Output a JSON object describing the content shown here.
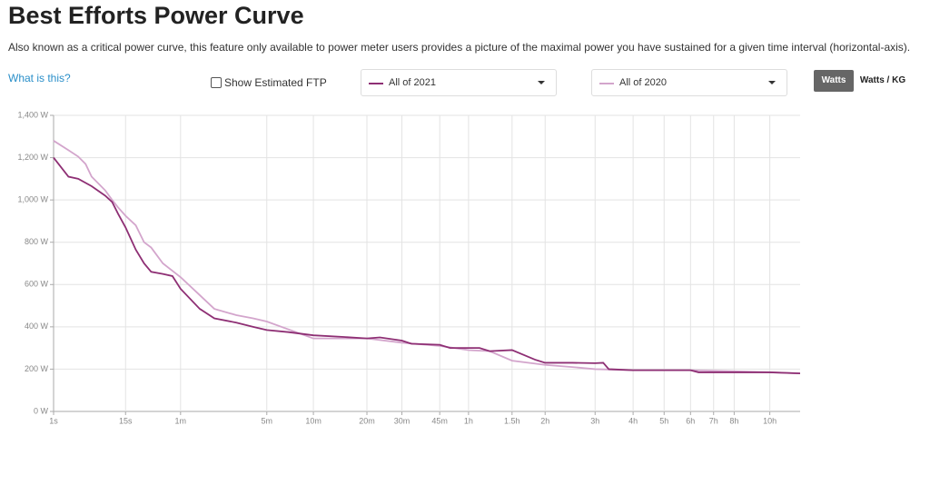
{
  "header": {
    "title": "Best Efforts Power Curve",
    "description": "Also known as a critical power curve, this feature only available to power meter users provides a picture of the maximal power you have sustained for a given time interval (horizontal-axis).",
    "help_link": "What is this?"
  },
  "controls": {
    "checkbox": "Show Estimated FTP",
    "units": [
      "Watts",
      "Watts / KG"
    ]
  },
  "chart_data": {
    "type": "line",
    "xscale": "power",
    "grid": true,
    "xlim": [
      1,
      43200
    ],
    "ylim": [
      0,
      1400
    ],
    "xticks": [
      {
        "value": 1,
        "label": "1s"
      },
      {
        "value": 15,
        "label": "15s"
      },
      {
        "value": 60,
        "label": "1m"
      },
      {
        "value": 300,
        "label": "5m"
      },
      {
        "value": 600,
        "label": "10m"
      },
      {
        "value": 1200,
        "label": "20m"
      },
      {
        "value": 1800,
        "label": "30m"
      },
      {
        "value": 2700,
        "label": "45m"
      },
      {
        "value": 3600,
        "label": "1h"
      },
      {
        "value": 5400,
        "label": "1.5h"
      },
      {
        "value": 7200,
        "label": "2h"
      },
      {
        "value": 10800,
        "label": "3h"
      },
      {
        "value": 14400,
        "label": "4h"
      },
      {
        "value": 18000,
        "label": "5h"
      },
      {
        "value": 21600,
        "label": "6h"
      },
      {
        "value": 25200,
        "label": "7h"
      },
      {
        "value": 28800,
        "label": "8h"
      },
      {
        "value": 36000,
        "label": "10h"
      }
    ],
    "yticks": [
      {
        "value": 0,
        "label": "0 W"
      },
      {
        "value": 200,
        "label": "200 W"
      },
      {
        "value": 400,
        "label": "400 W"
      },
      {
        "value": 600,
        "label": "600 W"
      },
      {
        "value": 800,
        "label": "800 W"
      },
      {
        "value": 1000,
        "label": "1,000 W"
      },
      {
        "value": 1200,
        "label": "1,200 W"
      },
      {
        "value": 1400,
        "label": "1,400 W"
      }
    ],
    "series": [
      {
        "name": "All of 2021",
        "color": "#8e2f74",
        "x": [
          1,
          2,
          3,
          5,
          8,
          10,
          12,
          15,
          20,
          25,
          30,
          40,
          50,
          60,
          90,
          120,
          180,
          240,
          300,
          420,
          600,
          900,
          1200,
          1400,
          1800,
          2000,
          2700,
          3000,
          3600,
          4000,
          4400,
          5400,
          6600,
          7200,
          9000,
          10800,
          11500,
          12000,
          14400,
          21600,
          22800,
          28800,
          36000,
          43200
        ],
        "values": [
          1200,
          1110,
          1100,
          1065,
          1020,
          990,
          935,
          870,
          765,
          700,
          660,
          650,
          640,
          580,
          485,
          440,
          420,
          400,
          385,
          375,
          360,
          352,
          345,
          350,
          335,
          320,
          315,
          300,
          300,
          300,
          285,
          290,
          245,
          230,
          230,
          228,
          230,
          200,
          195,
          195,
          185,
          185,
          185,
          180
        ]
      },
      {
        "name": "All of 2020",
        "color": "#d3a5cc",
        "x": [
          1,
          2,
          3,
          4,
          5,
          8,
          10,
          12,
          15,
          20,
          25,
          30,
          40,
          50,
          60,
          90,
          120,
          180,
          240,
          300,
          600,
          900,
          1200,
          1800,
          2700,
          3600,
          4400,
          5400,
          7200,
          9000,
          10800,
          14400,
          21600,
          28800,
          36000,
          43200
        ],
        "values": [
          1280,
          1235,
          1205,
          1170,
          1110,
          1045,
          1000,
          965,
          925,
          880,
          800,
          775,
          700,
          665,
          635,
          550,
          485,
          455,
          440,
          425,
          345,
          345,
          345,
          325,
          310,
          290,
          285,
          240,
          220,
          210,
          200,
          195,
          195,
          190,
          185,
          180
        ]
      }
    ]
  }
}
